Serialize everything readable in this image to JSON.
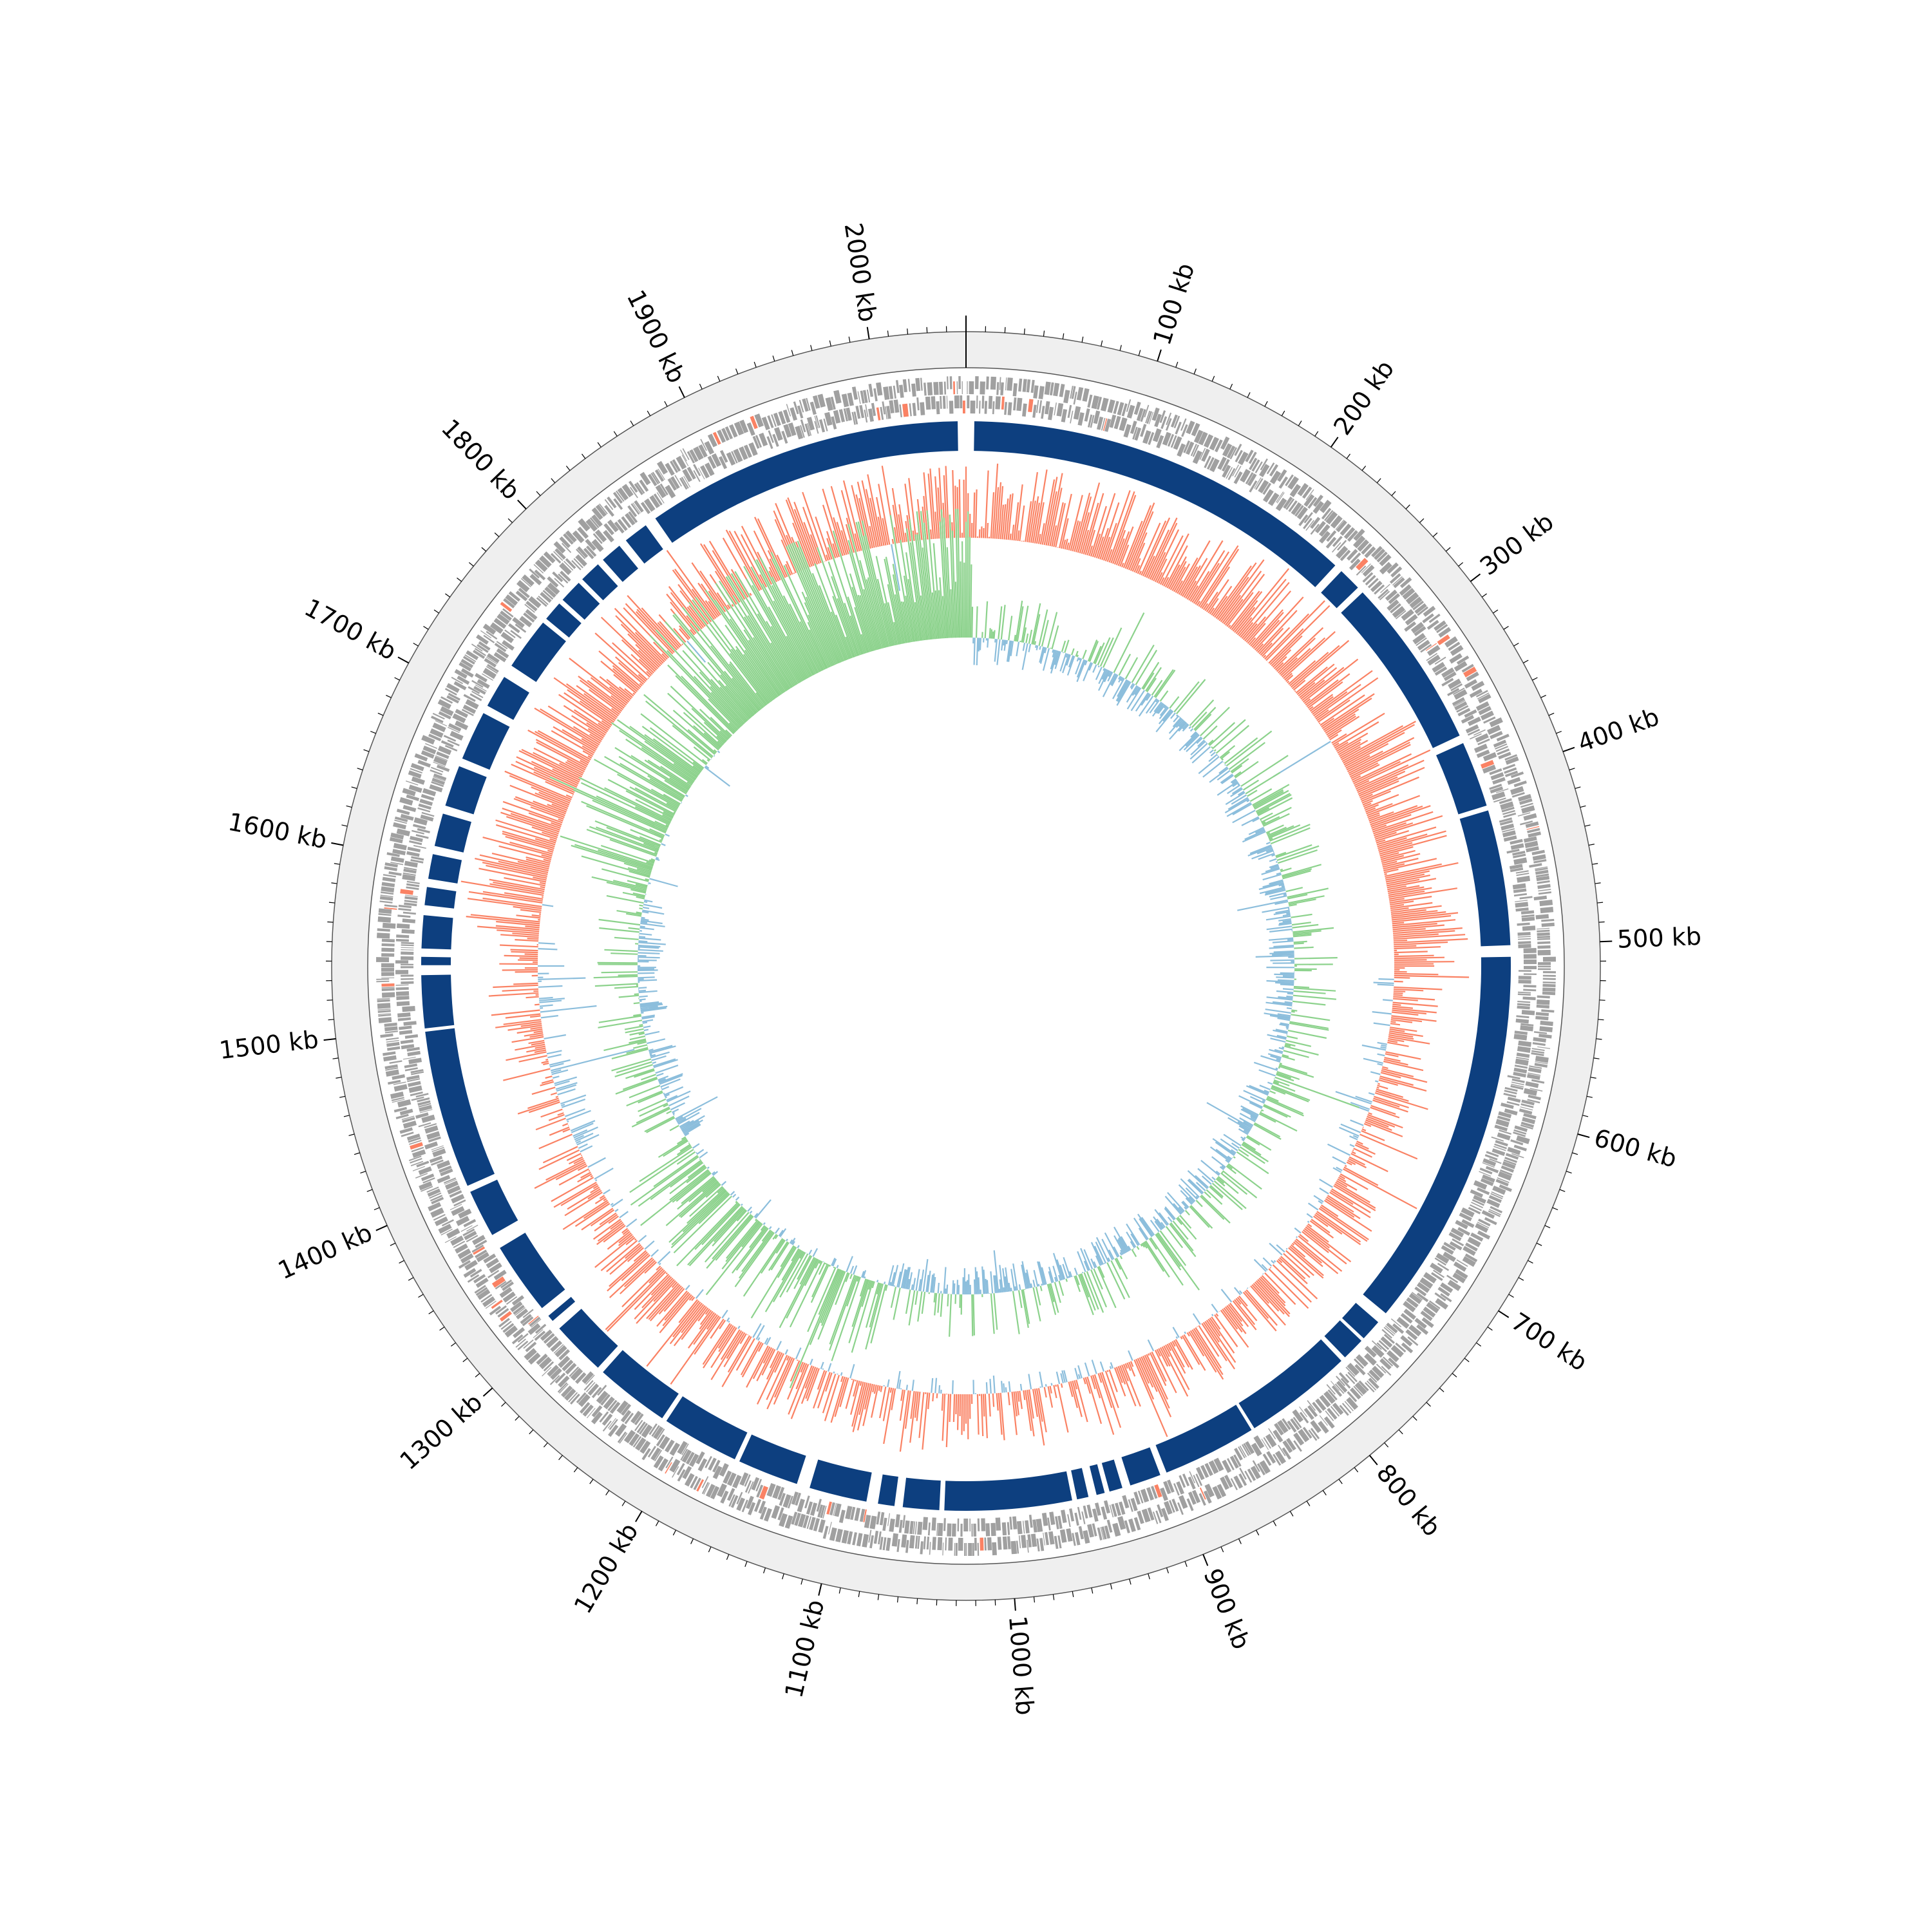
{
  "chart_data": {
    "type": "circular-genome-map",
    "genome_length_kb": 2050,
    "scale_unit": "kb",
    "major_tick_interval_kb": 100,
    "minor_tick_interval_kb": 10,
    "tick_labels": [
      "100 kb",
      "200 kb",
      "300 kb",
      "400 kb",
      "500 kb",
      "600 kb",
      "700 kb",
      "800 kb",
      "900 kb",
      "1000 kb",
      "1100 kb",
      "1200 kb",
      "1300 kb",
      "1400 kb",
      "1500 kb",
      "1600 kb",
      "1700 kb",
      "1800 kb",
      "1900 kb",
      "2000 kb"
    ],
    "tracks": [
      {
        "name": "forward-strand-features",
        "type": "feature-blocks"
      },
      {
        "name": "reverse-strand-features",
        "type": "feature-blocks"
      },
      {
        "name": "blocks",
        "type": "blocks",
        "segments_kb": [
          [
            5,
            243
          ],
          [
            248,
            262
          ],
          [
            266,
            370
          ],
          [
            375,
            415
          ],
          [
            418,
            500
          ],
          [
            507,
            738
          ],
          [
            745,
            758
          ],
          [
            760,
            774
          ],
          [
            777,
            843
          ],
          [
            845,
            902
          ],
          [
            906,
            925
          ],
          [
            930,
            938
          ],
          [
            941,
            946
          ],
          [
            951,
            958
          ],
          [
            961,
            1038
          ],
          [
            1041,
            1063
          ],
          [
            1068,
            1078
          ],
          [
            1085,
            1120
          ],
          [
            1128,
            1165
          ],
          [
            1168,
            1215
          ],
          [
            1218,
            1263
          ],
          [
            1267,
            1300
          ],
          [
            1306,
            1310
          ],
          [
            1316,
            1360
          ],
          [
            1369,
            1398
          ],
          [
            1402,
            1498
          ],
          [
            1500,
            1532
          ],
          [
            1538,
            1543
          ],
          [
            1548,
            1568
          ],
          [
            1574,
            1585
          ],
          [
            1590,
            1605
          ],
          [
            1610,
            1630
          ],
          [
            1635,
            1660
          ],
          [
            1665,
            1695
          ],
          [
            1700,
            1720
          ],
          [
            1728,
            1760
          ],
          [
            1763,
            1775
          ],
          [
            1778,
            1792
          ],
          [
            1795,
            1808
          ],
          [
            1812,
            1825
          ],
          [
            1830,
            1845
          ],
          [
            1852,
            2045
          ]
        ]
      },
      {
        "name": "gc-skew",
        "type": "area",
        "positive_color": "#fa8264",
        "negative_color": "#8cbedc"
      },
      {
        "name": "gc-content",
        "type": "area",
        "positive_color": "#8cd28c",
        "negative_color": "#8cbedc"
      }
    ],
    "colors": {
      "outer_ring": "#efefef",
      "feature": "#a0a0a0",
      "feature_highlight": "#fa8264",
      "block": "#0d3f7f",
      "skew_positive": "#fa8264",
      "skew_negative": "#8cbedc",
      "gc_positive": "#8cd28c",
      "gc_negative": "#8cbedc"
    },
    "grid": false,
    "legend": "none"
  }
}
